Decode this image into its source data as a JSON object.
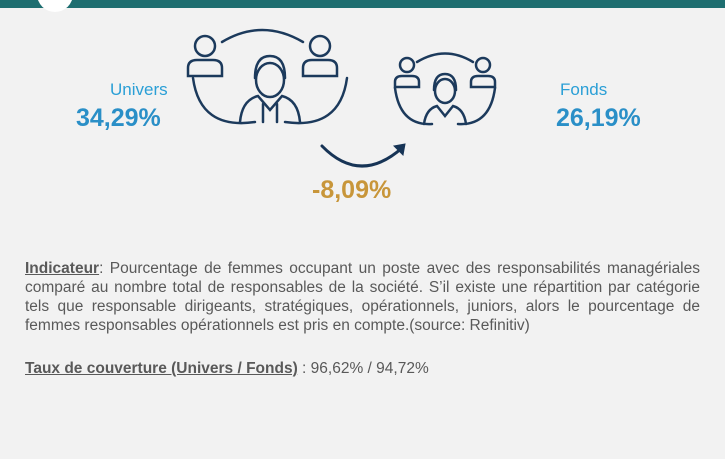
{
  "left": {
    "label": "Univers",
    "value": "34,29%"
  },
  "right": {
    "label": "Fonds",
    "value": "26,19%"
  },
  "difference": "-8,09%",
  "indicator": {
    "label": "Indicateur",
    "text": ": Pourcentage de femmes occupant un poste avec des responsabilités managériales comparé au nombre total de responsables de la société. S’il existe une répartition par catégorie tels que responsable dirigeants, stratégiques, opérationnels, juniors, alors le pourcentage de femmes responsables opérationnels est pris en compte.(source: Refinitiv)"
  },
  "coverage": {
    "label": "Taux de couverture (Univers / Fonds)",
    "text": " : 96,62% / 94,72%"
  }
}
